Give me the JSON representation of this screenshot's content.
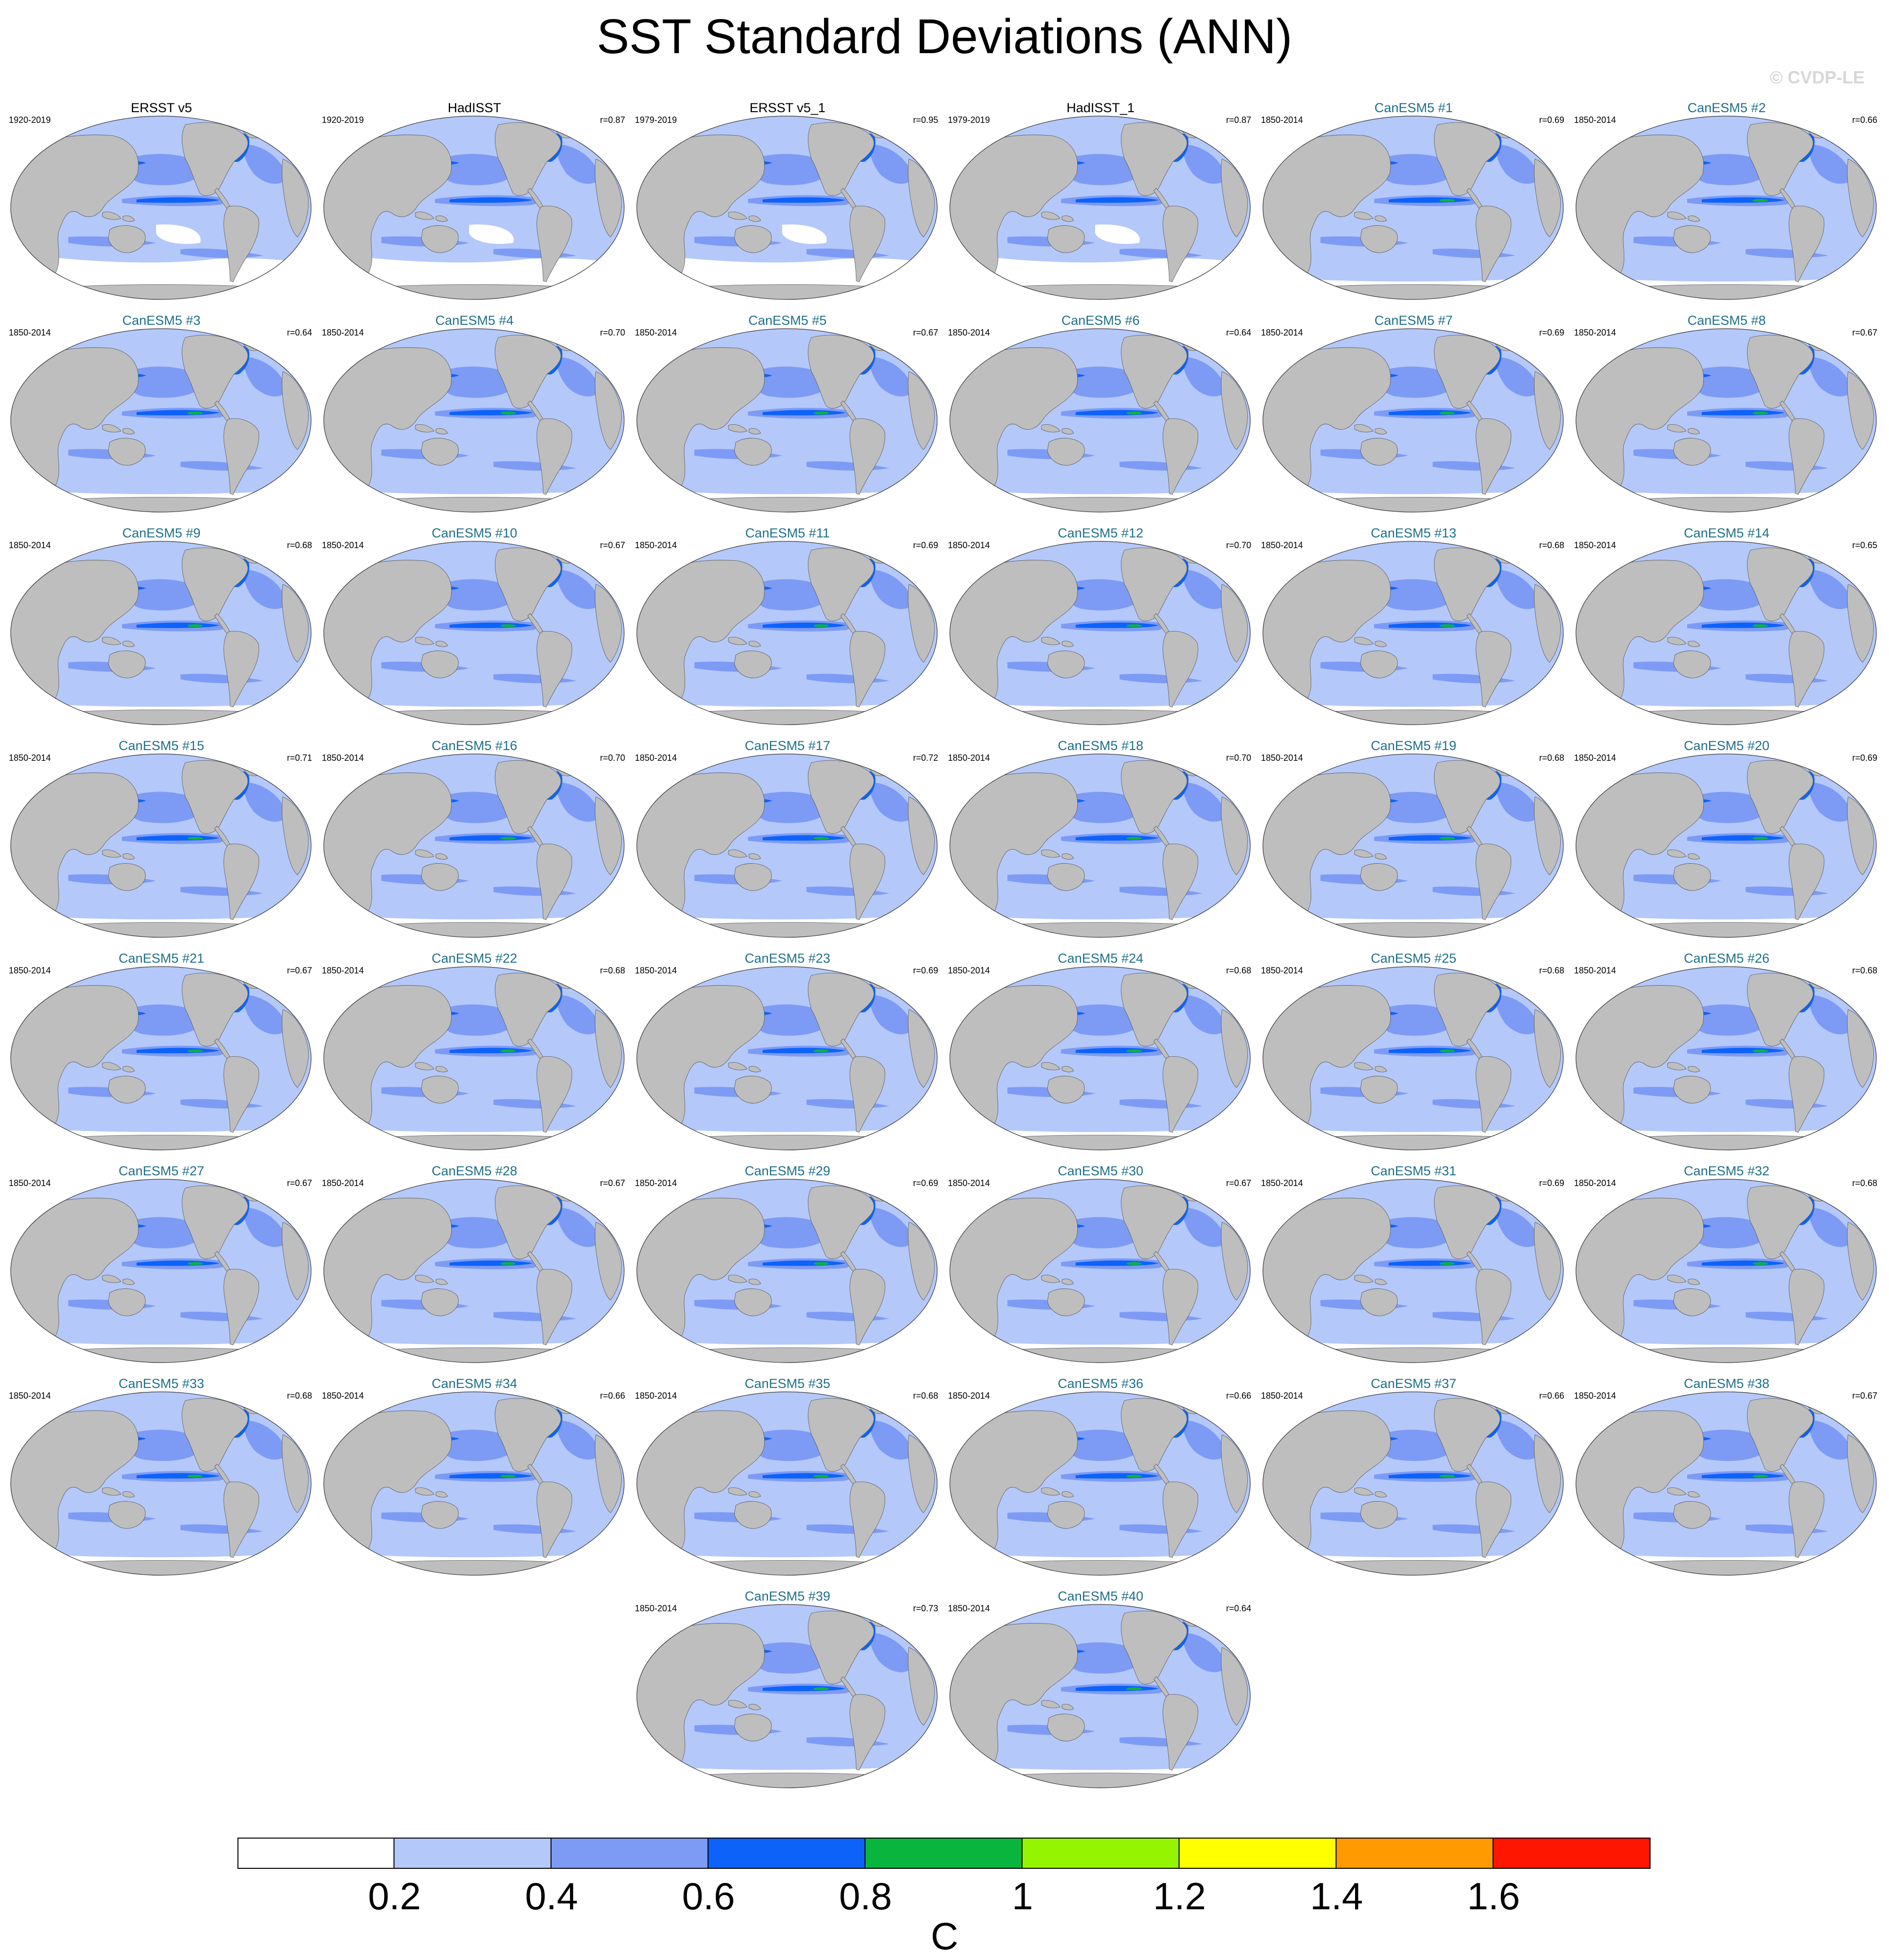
{
  "title": "SST Standard Deviations (ANN)",
  "watermark": "© CVDP-LE",
  "colors": {
    "levels": [
      "#ffffff",
      "#b4c8fa",
      "#7d9bf5",
      "#0d62fa",
      "#0ab53e",
      "#95f500",
      "#ffff00",
      "#ff9a00",
      "#ff1600"
    ],
    "land": "#bebebe",
    "model_title": "#1f6f8b"
  },
  "panels": [
    {
      "title": "ERSST v5",
      "period": "1920-2019",
      "corr": "",
      "kind": "obs",
      "row": 0,
      "col": 0
    },
    {
      "title": "HadISST",
      "period": "1920-2019",
      "corr": "r=0.87",
      "kind": "obs",
      "row": 0,
      "col": 1
    },
    {
      "title": "ERSST v5_1",
      "period": "1979-2019",
      "corr": "r=0.95",
      "kind": "obs",
      "row": 0,
      "col": 2
    },
    {
      "title": "HadISST_1",
      "period": "1979-2019",
      "corr": "r=0.87",
      "kind": "obs",
      "row": 0,
      "col": 3
    },
    {
      "title": "CanESM5 #1",
      "period": "1850-2014",
      "corr": "r=0.69",
      "kind": "model",
      "row": 0,
      "col": 4
    },
    {
      "title": "CanESM5 #2",
      "period": "1850-2014",
      "corr": "r=0.66",
      "kind": "model",
      "row": 0,
      "col": 5
    },
    {
      "title": "CanESM5 #3",
      "period": "1850-2014",
      "corr": "r=0.64",
      "kind": "model",
      "row": 1,
      "col": 0
    },
    {
      "title": "CanESM5 #4",
      "period": "1850-2014",
      "corr": "r=0.70",
      "kind": "model",
      "row": 1,
      "col": 1
    },
    {
      "title": "CanESM5 #5",
      "period": "1850-2014",
      "corr": "r=0.67",
      "kind": "model",
      "row": 1,
      "col": 2
    },
    {
      "title": "CanESM5 #6",
      "period": "1850-2014",
      "corr": "r=0.64",
      "kind": "model",
      "row": 1,
      "col": 3
    },
    {
      "title": "CanESM5 #7",
      "period": "1850-2014",
      "corr": "r=0.69",
      "kind": "model",
      "row": 1,
      "col": 4
    },
    {
      "title": "CanESM5 #8",
      "period": "1850-2014",
      "corr": "r=0.67",
      "kind": "model",
      "row": 1,
      "col": 5
    },
    {
      "title": "CanESM5 #9",
      "period": "1850-2014",
      "corr": "r=0.68",
      "kind": "model",
      "row": 2,
      "col": 0
    },
    {
      "title": "CanESM5 #10",
      "period": "1850-2014",
      "corr": "r=0.67",
      "kind": "model",
      "row": 2,
      "col": 1
    },
    {
      "title": "CanESM5 #11",
      "period": "1850-2014",
      "corr": "r=0.69",
      "kind": "model",
      "row": 2,
      "col": 2
    },
    {
      "title": "CanESM5 #12",
      "period": "1850-2014",
      "corr": "r=0.70",
      "kind": "model",
      "row": 2,
      "col": 3
    },
    {
      "title": "CanESM5 #13",
      "period": "1850-2014",
      "corr": "r=0.68",
      "kind": "model",
      "row": 2,
      "col": 4
    },
    {
      "title": "CanESM5 #14",
      "period": "1850-2014",
      "corr": "r=0.65",
      "kind": "model",
      "row": 2,
      "col": 5
    },
    {
      "title": "CanESM5 #15",
      "period": "1850-2014",
      "corr": "r=0.71",
      "kind": "model",
      "row": 3,
      "col": 0
    },
    {
      "title": "CanESM5 #16",
      "period": "1850-2014",
      "corr": "r=0.70",
      "kind": "model",
      "row": 3,
      "col": 1
    },
    {
      "title": "CanESM5 #17",
      "period": "1850-2014",
      "corr": "r=0.72",
      "kind": "model",
      "row": 3,
      "col": 2
    },
    {
      "title": "CanESM5 #18",
      "period": "1850-2014",
      "corr": "r=0.70",
      "kind": "model",
      "row": 3,
      "col": 3
    },
    {
      "title": "CanESM5 #19",
      "period": "1850-2014",
      "corr": "r=0.68",
      "kind": "model",
      "row": 3,
      "col": 4
    },
    {
      "title": "CanESM5 #20",
      "period": "1850-2014",
      "corr": "r=0.69",
      "kind": "model",
      "row": 3,
      "col": 5
    },
    {
      "title": "CanESM5 #21",
      "period": "1850-2014",
      "corr": "r=0.67",
      "kind": "model",
      "row": 4,
      "col": 0
    },
    {
      "title": "CanESM5 #22",
      "period": "1850-2014",
      "corr": "r=0.68",
      "kind": "model",
      "row": 4,
      "col": 1
    },
    {
      "title": "CanESM5 #23",
      "period": "1850-2014",
      "corr": "r=0.69",
      "kind": "model",
      "row": 4,
      "col": 2
    },
    {
      "title": "CanESM5 #24",
      "period": "1850-2014",
      "corr": "r=0.68",
      "kind": "model",
      "row": 4,
      "col": 3
    },
    {
      "title": "CanESM5 #25",
      "period": "1850-2014",
      "corr": "r=0.68",
      "kind": "model",
      "row": 4,
      "col": 4
    },
    {
      "title": "CanESM5 #26",
      "period": "1850-2014",
      "corr": "r=0.68",
      "kind": "model",
      "row": 4,
      "col": 5
    },
    {
      "title": "CanESM5 #27",
      "period": "1850-2014",
      "corr": "r=0.67",
      "kind": "model",
      "row": 5,
      "col": 0
    },
    {
      "title": "CanESM5 #28",
      "period": "1850-2014",
      "corr": "r=0.67",
      "kind": "model",
      "row": 5,
      "col": 1
    },
    {
      "title": "CanESM5 #29",
      "period": "1850-2014",
      "corr": "r=0.69",
      "kind": "model",
      "row": 5,
      "col": 2
    },
    {
      "title": "CanESM5 #30",
      "period": "1850-2014",
      "corr": "r=0.67",
      "kind": "model",
      "row": 5,
      "col": 3
    },
    {
      "title": "CanESM5 #31",
      "period": "1850-2014",
      "corr": "r=0.69",
      "kind": "model",
      "row": 5,
      "col": 4
    },
    {
      "title": "CanESM5 #32",
      "period": "1850-2014",
      "corr": "r=0.68",
      "kind": "model",
      "row": 5,
      "col": 5
    },
    {
      "title": "CanESM5 #33",
      "period": "1850-2014",
      "corr": "r=0.68",
      "kind": "model",
      "row": 6,
      "col": 0
    },
    {
      "title": "CanESM5 #34",
      "period": "1850-2014",
      "corr": "r=0.66",
      "kind": "model",
      "row": 6,
      "col": 1
    },
    {
      "title": "CanESM5 #35",
      "period": "1850-2014",
      "corr": "r=0.68",
      "kind": "model",
      "row": 6,
      "col": 2
    },
    {
      "title": "CanESM5 #36",
      "period": "1850-2014",
      "corr": "r=0.66",
      "kind": "model",
      "row": 6,
      "col": 3
    },
    {
      "title": "CanESM5 #37",
      "period": "1850-2014",
      "corr": "r=0.66",
      "kind": "model",
      "row": 6,
      "col": 4
    },
    {
      "title": "CanESM5 #38",
      "period": "1850-2014",
      "corr": "r=0.67",
      "kind": "model",
      "row": 6,
      "col": 5
    },
    {
      "title": "CanESM5 #39",
      "period": "1850-2014",
      "corr": "r=0.73",
      "kind": "model",
      "row": 7,
      "col": 2
    },
    {
      "title": "CanESM5 #40",
      "period": "1850-2014",
      "corr": "r=0.64",
      "kind": "model",
      "row": 7,
      "col": 3
    }
  ],
  "colorbar": {
    "tick_labels": [
      "0.2",
      "0.4",
      "0.6",
      "0.8",
      "1",
      "1.2",
      "1.4",
      "1.6"
    ],
    "unit": "C"
  }
}
